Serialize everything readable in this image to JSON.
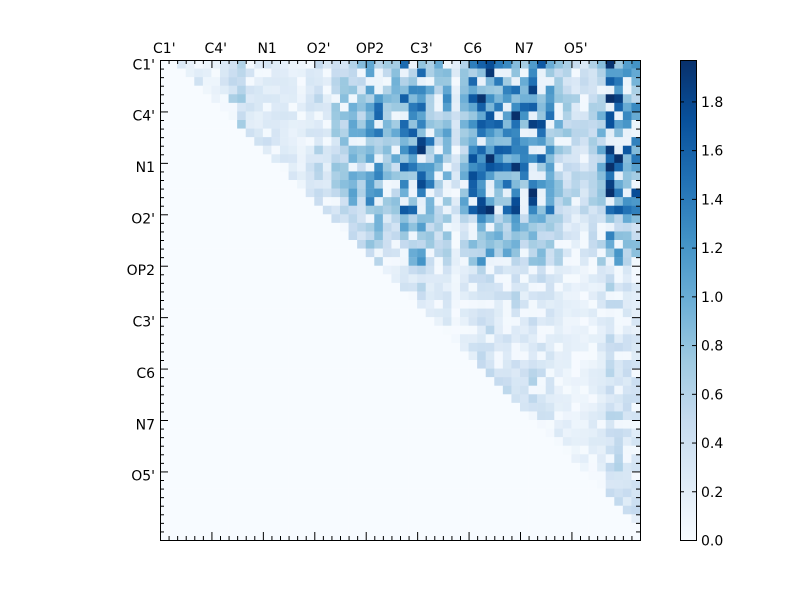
{
  "chart_data": {
    "type": "heatmap",
    "title": "",
    "xlabel": "",
    "ylabel": "",
    "n_cells": 56,
    "x_axis_position": "top",
    "tick_labels": [
      "C1'",
      "C4'",
      "N1",
      "O2'",
      "OP2",
      "C3'",
      "C6",
      "N7",
      "O5'"
    ],
    "tick_cells": [
      0,
      6,
      12,
      18,
      24,
      30,
      36,
      42,
      48
    ],
    "colormap": "Blues",
    "colormap_stops": [
      "#f7fbff",
      "#deebf7",
      "#c6dbef",
      "#9ecae1",
      "#6baed6",
      "#4292c6",
      "#2171b5",
      "#08519c",
      "#08306b"
    ],
    "vmin": 0.0,
    "vmax": 1.97,
    "colorbar": {
      "position": "right",
      "tick_values": [
        0.0,
        0.2,
        0.4,
        0.6,
        0.8,
        1.0,
        1.2,
        1.4,
        1.6,
        1.8
      ],
      "tick_labels": [
        "0.0",
        "0.2",
        "0.4",
        "0.6",
        "0.8",
        "1.0",
        "1.2",
        "1.4",
        "1.6",
        "1.8"
      ]
    },
    "matrix_structure": "upper-triangular",
    "notable_cells": [
      {
        "row": 0,
        "col": 52,
        "value": 1.95
      },
      {
        "row": 0,
        "col": 37,
        "value": 1.6
      },
      {
        "row": 10,
        "col": 52,
        "value": 1.9
      },
      {
        "row": 12,
        "col": 38,
        "value": 1.7
      },
      {
        "row": 14,
        "col": 52,
        "value": 1.85
      },
      {
        "row": 15,
        "col": 55,
        "value": 1.75
      },
      {
        "row": 6,
        "col": 54,
        "value": 1.3
      },
      {
        "row": 52,
        "col": 55,
        "value": 0.5
      }
    ]
  }
}
